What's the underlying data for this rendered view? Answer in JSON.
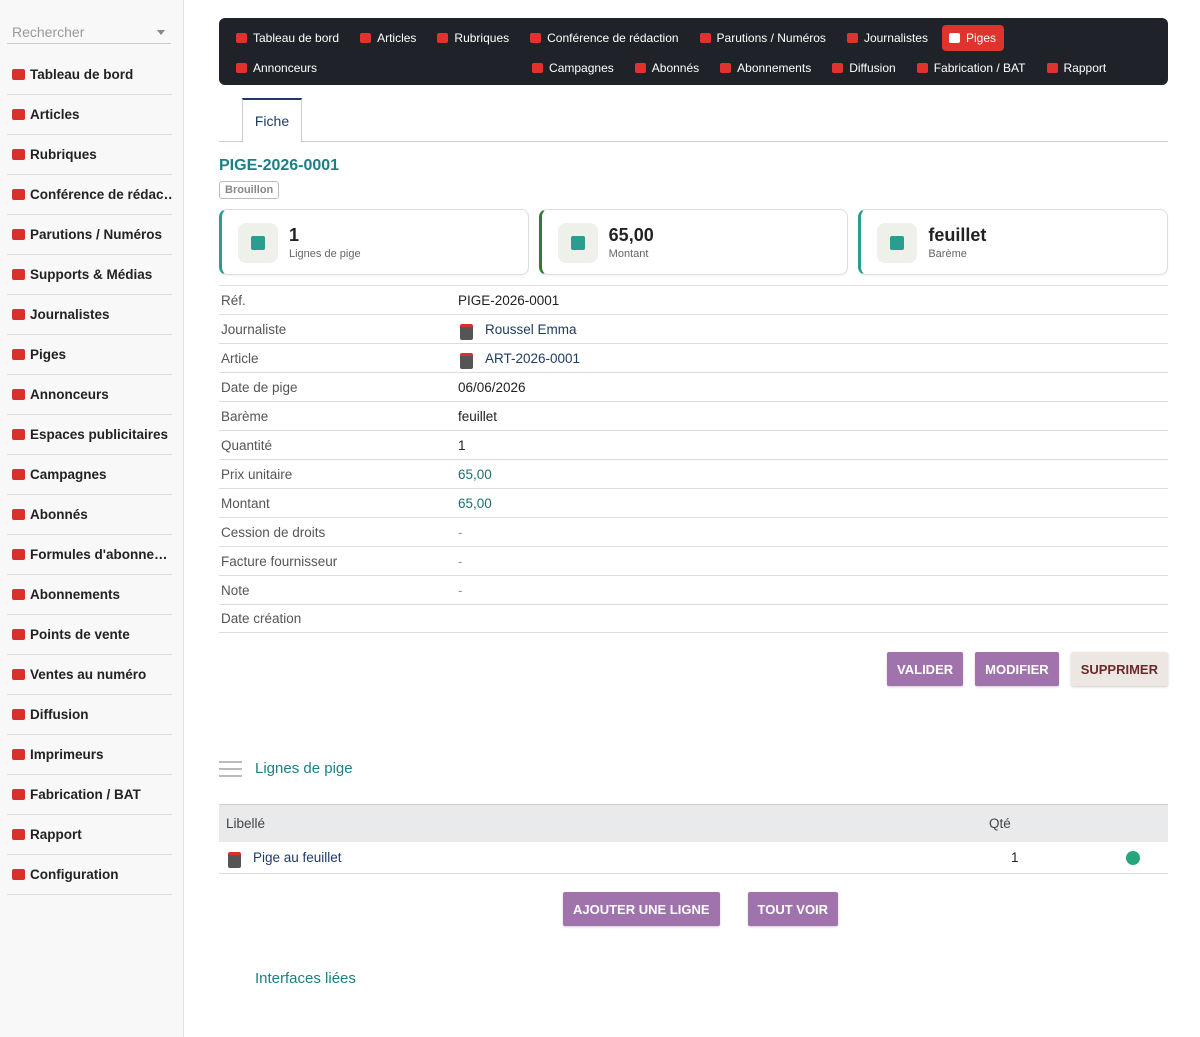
{
  "sidebar": {
    "search_placeholder": "Rechercher",
    "items": [
      "Tableau de bord",
      "Articles",
      "Rubriques",
      "Conférence de rédac…",
      "Parutions / Numéros",
      "Supports & Médias",
      "Journalistes",
      "Piges",
      "Annonceurs",
      "Espaces publicitaires",
      "Campagnes",
      "Abonnés",
      "Formules d'abonne…",
      "Abonnements",
      "Points de vente",
      "Ventes au numéro",
      "Diffusion",
      "Imprimeurs",
      "Fabrication / BAT",
      "Rapport",
      "Configuration"
    ]
  },
  "topnav": {
    "items": [
      "Tableau de bord",
      "Articles",
      "Rubriques",
      "Conférence de rédaction",
      "Parutions / Numéros",
      "Journalistes",
      "Piges",
      "Annonceurs",
      "Campagnes",
      "Abonnés",
      "Abonnements",
      "Diffusion",
      "Fabrication / BAT",
      "Rapport"
    ],
    "active": "Piges"
  },
  "tab": "Fiche",
  "record": {
    "title": "PIGE-2026-0001",
    "status": "Brouillon",
    "cards": [
      {
        "value": "1",
        "label": "Lignes de pige"
      },
      {
        "value": "65,00",
        "label": "Montant"
      },
      {
        "value": "feuillet",
        "label": "Barème"
      }
    ],
    "fields": [
      {
        "label": "Réf.",
        "value": "PIGE-2026-0001",
        "style": "plain"
      },
      {
        "label": "Journaliste",
        "value": "Roussel Emma",
        "style": "link"
      },
      {
        "label": "Article",
        "value": "ART-2026-0001",
        "style": "link"
      },
      {
        "label": "Date de pige",
        "value": "06/06/2026",
        "style": "plain"
      },
      {
        "label": "Barème",
        "value": "feuillet",
        "style": "plain"
      },
      {
        "label": "Quantité",
        "value": "1",
        "style": "plain"
      },
      {
        "label": "Prix unitaire",
        "value": "65,00",
        "style": "money"
      },
      {
        "label": "Montant",
        "value": "65,00",
        "style": "money"
      },
      {
        "label": "Cession de droits",
        "value": "-",
        "style": "muted"
      },
      {
        "label": "Facture fournisseur",
        "value": "-",
        "style": "muted"
      },
      {
        "label": "Note",
        "value": "-",
        "style": "muted"
      },
      {
        "label": "Date création",
        "value": "",
        "style": "plain"
      }
    ],
    "actions": [
      "VALIDER",
      "MODIFIER",
      "SUPPRIMER"
    ]
  },
  "lines": {
    "title": "Lignes de pige",
    "headers": [
      "Libellé",
      "Qté"
    ],
    "rows": [
      [
        "Pige au feuillet",
        "1"
      ]
    ],
    "actions": [
      "AJOUTER UNE LIGNE",
      "TOUT VOIR"
    ]
  },
  "related_title": "Interfaces liées"
}
